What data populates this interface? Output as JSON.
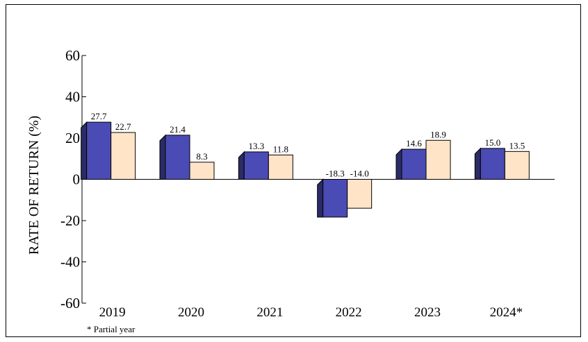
{
  "chart_data": {
    "type": "bar",
    "title": "",
    "xlabel": "",
    "ylabel": "RATE OF RETURN (%)",
    "categories": [
      "2019",
      "2020",
      "2021",
      "2022",
      "2023",
      "2024*"
    ],
    "series": [
      {
        "values": [
          27.7,
          21.4,
          13.3,
          -18.3,
          14.6,
          15.0
        ],
        "color": "#4b4bb5"
      },
      {
        "values": [
          22.7,
          8.3,
          11.8,
          -14.0,
          18.9,
          13.5
        ],
        "color": "#ffe4c8"
      }
    ],
    "ylim": [
      -60,
      60
    ],
    "yticks": [
      "60",
      "40",
      "20",
      "0",
      "-20",
      "-40",
      "-60"
    ],
    "grid": false,
    "footnote": "* Partial year"
  }
}
